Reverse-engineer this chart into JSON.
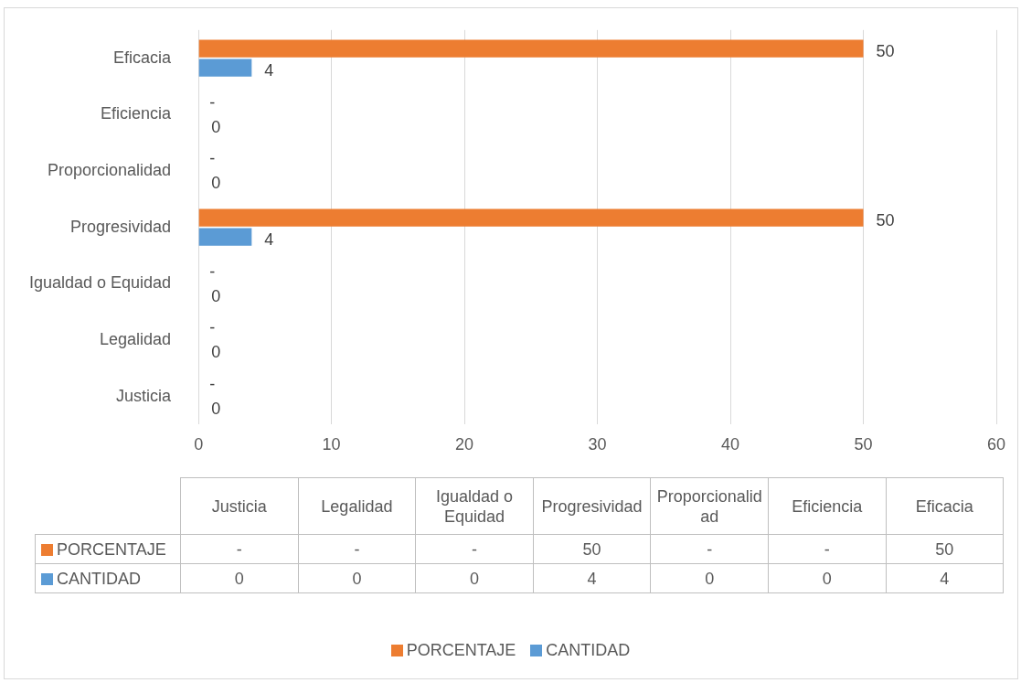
{
  "chart_data": {
    "type": "bar",
    "orientation": "horizontal",
    "categories": [
      "Eficacia",
      "Eficiencia",
      "Proporcionalidad",
      "Progresividad",
      "Igualdad o Equidad",
      "Legalidad",
      "Justicia"
    ],
    "series": [
      {
        "name": "PORCENTAJE",
        "color": "#ed7d31",
        "values": [
          50,
          null,
          null,
          50,
          null,
          null,
          null
        ],
        "value_labels": [
          "50",
          "-",
          "-",
          "50",
          "-",
          "-",
          "-"
        ]
      },
      {
        "name": "CANTIDAD",
        "color": "#5b9bd5",
        "values": [
          4,
          0,
          0,
          4,
          0,
          0,
          0
        ],
        "value_labels": [
          "4",
          "0",
          "0",
          "4",
          "0",
          "0",
          "0"
        ]
      }
    ],
    "xlim": [
      0,
      60
    ],
    "xticks": [
      0,
      10,
      20,
      30,
      40,
      50,
      60
    ],
    "grid": "x",
    "legend": "bottom"
  }
}
